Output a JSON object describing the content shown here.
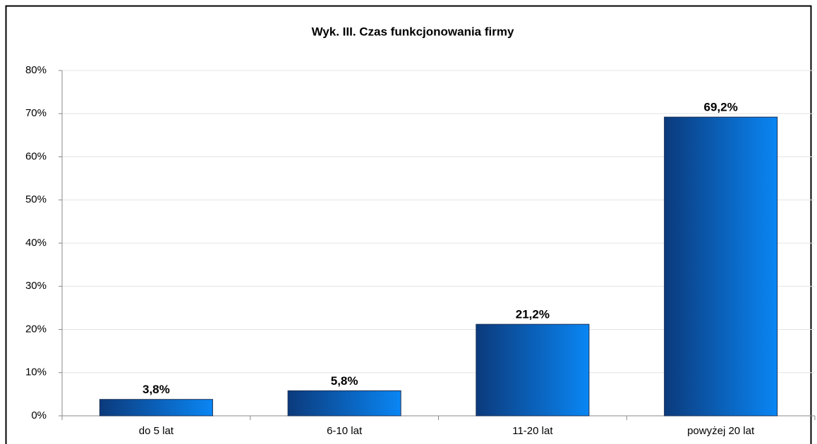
{
  "chart_data": {
    "type": "bar",
    "title": "Wyk. III. Czas funkcjonowania firmy",
    "categories": [
      "do 5 lat",
      "6-10 lat",
      "11-20 lat",
      "powyżej 20 lat"
    ],
    "values": [
      3.8,
      5.8,
      21.2,
      69.2
    ],
    "value_labels": [
      "3,8%",
      "5,8%",
      "21,2%",
      "69,2%"
    ],
    "color": "#0a6fd8",
    "ylim": [
      0,
      80
    ],
    "yticks": [
      {
        "value": 0,
        "label": "0%"
      },
      {
        "value": 10,
        "label": "10%"
      },
      {
        "value": 20,
        "label": "20%"
      },
      {
        "value": 30,
        "label": "30%"
      },
      {
        "value": 40,
        "label": "40%"
      },
      {
        "value": 50,
        "label": "50%"
      },
      {
        "value": 60,
        "label": "60%"
      },
      {
        "value": 70,
        "label": "70%"
      },
      {
        "value": 80,
        "label": "80%"
      }
    ],
    "grid": true
  }
}
